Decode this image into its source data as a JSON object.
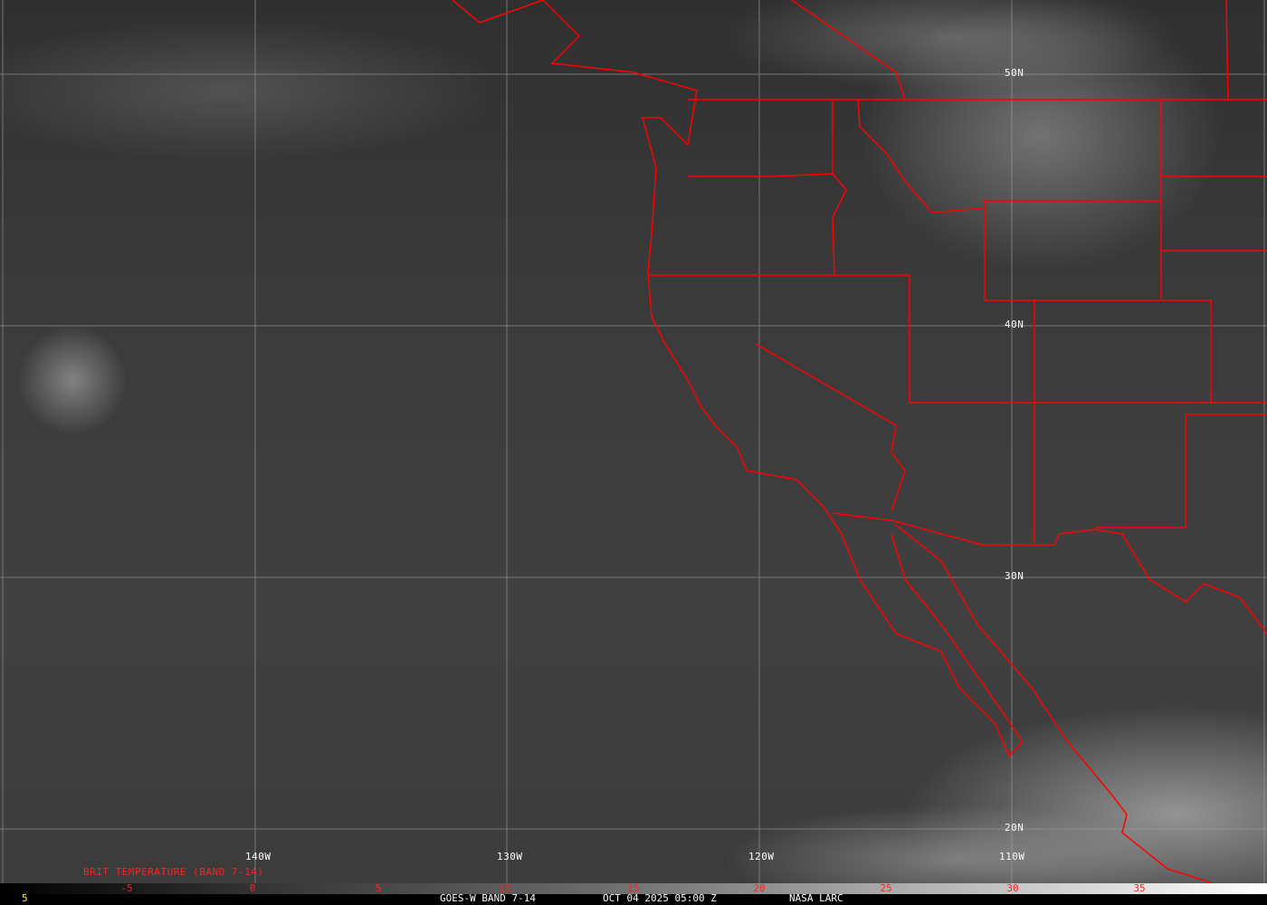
{
  "title": "GOES-W BAND 7-14",
  "timestamp": "OCT 04 2025 05:00 Z",
  "source": "NASA LARC",
  "corner_value": "5",
  "colorbar": {
    "label": "BRIT TEMPERATURE (BAND 7-14)",
    "ticks": [
      "-5",
      "0",
      "5",
      "10",
      "15",
      "20",
      "25",
      "30",
      "35"
    ]
  },
  "latitudes": [
    "50N",
    "40N",
    "30N",
    "20N"
  ],
  "longitudes": [
    "140W",
    "130W",
    "120W",
    "110W"
  ],
  "colors": {
    "borders": "#ff0000",
    "grid": "#a0a0a0",
    "labels": "#ffffff",
    "colorbar_text": "#ff2020",
    "corner": "#ffff00"
  }
}
